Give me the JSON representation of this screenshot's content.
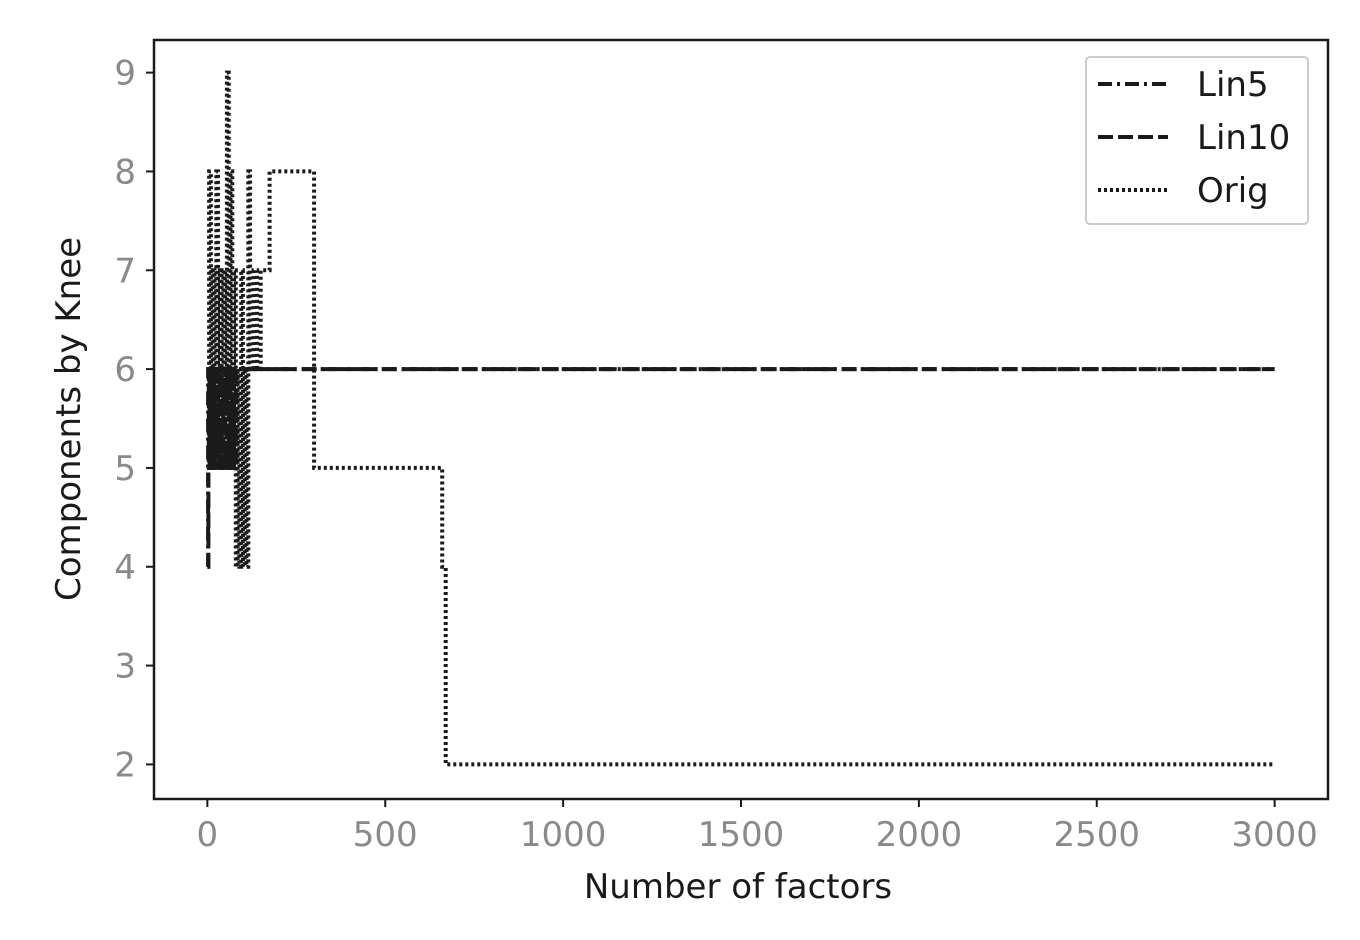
{
  "chart_data": {
    "type": "line",
    "title": "",
    "xlabel": "Number of factors",
    "ylabel": "Components by Knee",
    "xlim": [
      -150,
      3150
    ],
    "ylim": [
      1.65,
      9.33
    ],
    "xticks": [
      0,
      500,
      1000,
      1500,
      2000,
      2500,
      3000
    ],
    "xtick_labels": [
      "0",
      "500",
      "1000",
      "1500",
      "2000",
      "2500",
      "3000"
    ],
    "yticks": [
      2,
      3,
      4,
      5,
      6,
      7,
      8,
      9
    ],
    "ytick_labels": [
      "2",
      "3",
      "4",
      "5",
      "6",
      "7",
      "8",
      "9"
    ],
    "grid": false,
    "legend_position": "top-right",
    "series": [
      {
        "name": "Lin5",
        "style": "dashdot",
        "color": "#1a1a1a",
        "x": [
          0,
          2,
          2,
          4,
          4,
          6,
          6,
          8,
          8,
          10,
          10,
          12,
          12,
          14,
          14,
          16,
          16,
          18,
          18,
          20,
          20,
          25,
          25,
          30,
          30,
          35,
          35,
          40,
          40,
          45,
          45,
          50,
          50,
          55,
          55,
          60,
          60,
          65,
          65,
          70,
          70,
          75,
          75,
          80,
          80,
          3000
        ],
        "y": [
          4,
          4,
          6,
          6,
          5,
          5,
          6,
          6,
          5,
          5,
          6,
          6,
          5,
          5,
          6,
          6,
          5,
          5,
          6,
          6,
          5,
          5,
          6,
          6,
          5,
          5,
          6,
          6,
          5,
          5,
          6,
          6,
          5,
          5,
          6,
          6,
          5,
          5,
          6,
          6,
          5,
          5,
          6,
          6,
          6,
          6
        ]
      },
      {
        "name": "Lin10",
        "style": "dashed",
        "color": "#1a1a1a",
        "x": [
          0,
          3,
          3,
          6,
          6,
          9,
          9,
          12,
          12,
          15,
          15,
          20,
          20,
          30,
          30,
          40,
          40,
          50,
          50,
          60,
          60,
          70,
          70,
          80,
          80,
          3000
        ],
        "y": [
          4,
          4,
          5,
          5,
          6,
          6,
          5,
          5,
          6,
          6,
          5,
          5,
          6,
          6,
          5,
          5,
          6,
          6,
          5,
          5,
          6,
          6,
          5,
          5,
          6,
          6
        ]
      },
      {
        "name": "Orig",
        "style": "dotted",
        "color": "#1a1a1a",
        "x": [
          0,
          5,
          5,
          10,
          10,
          15,
          15,
          20,
          20,
          25,
          25,
          30,
          30,
          35,
          35,
          40,
          40,
          45,
          45,
          50,
          50,
          55,
          55,
          60,
          60,
          65,
          65,
          70,
          70,
          75,
          75,
          80,
          80,
          85,
          85,
          90,
          90,
          95,
          95,
          100,
          100,
          105,
          105,
          110,
          110,
          115,
          115,
          120,
          120,
          130,
          130,
          140,
          140,
          150,
          150,
          175,
          175,
          200,
          200,
          300,
          300,
          310,
          310,
          660,
          660,
          670,
          670,
          690,
          690,
          3000
        ],
        "y": [
          6,
          6,
          8,
          8,
          5,
          5,
          7,
          7,
          5,
          5,
          8,
          8,
          5,
          5,
          7,
          7,
          5,
          5,
          7,
          7,
          6,
          6,
          9,
          9,
          5,
          5,
          8,
          8,
          5,
          5,
          7,
          7,
          4,
          4,
          6,
          6,
          4,
          4,
          7,
          7,
          4,
          4,
          6,
          6,
          4,
          4,
          8,
          8,
          6,
          6,
          7,
          7,
          6,
          6,
          7,
          7,
          8,
          8,
          8,
          8,
          5,
          5,
          5,
          5,
          4,
          4,
          2,
          2,
          2,
          2
        ]
      }
    ]
  }
}
